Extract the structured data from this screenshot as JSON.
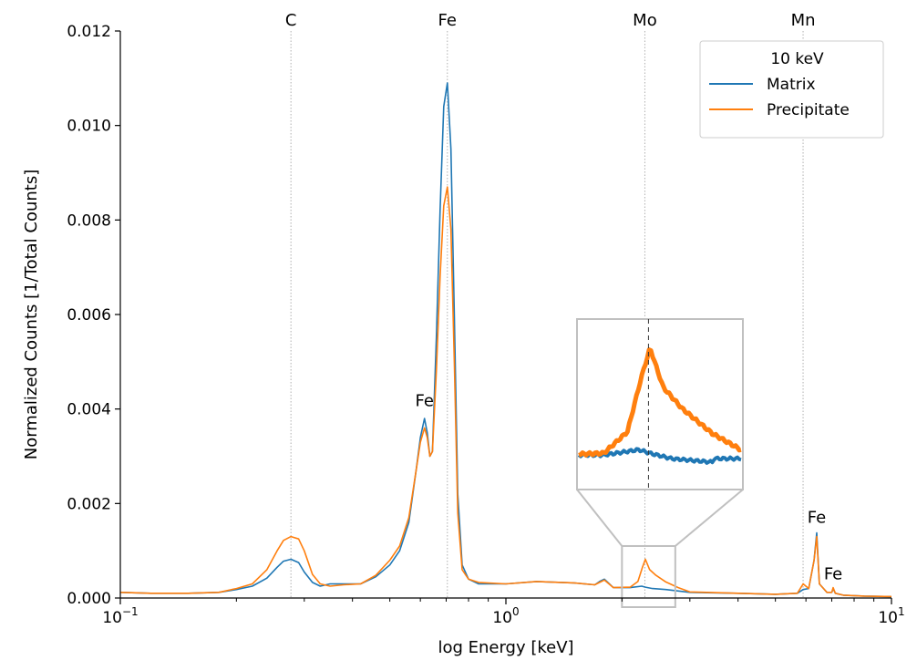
{
  "chart_data": {
    "type": "line",
    "title": "",
    "xlabel": "log Energy [keV]",
    "ylabel": "Normalized Counts [1/Total Counts]",
    "xscale": "log",
    "xlim": [
      0.1,
      10
    ],
    "ylim": [
      0,
      0.012
    ],
    "x_ticks": [
      {
        "value": 0.1,
        "base": "10",
        "exp": "−1"
      },
      {
        "value": 1,
        "base": "10",
        "exp": "0"
      },
      {
        "value": 10,
        "base": "10",
        "exp": "1"
      }
    ],
    "y_ticks": [
      "0.000",
      "0.002",
      "0.004",
      "0.006",
      "0.008",
      "0.010",
      "0.012"
    ],
    "legend": {
      "title": "10 keV",
      "position": "top-right"
    },
    "colors": {
      "matrix": "#1f77b4",
      "precipitate": "#ff7f0e",
      "element_lines": "#b0b0b0",
      "inset_frame": "#c0c0c0"
    },
    "element_lines": [
      {
        "label": "C",
        "energy": 0.277
      },
      {
        "label": "Fe",
        "energy": 0.705
      },
      {
        "label": "Mo",
        "energy": 2.293
      },
      {
        "label": "Mn",
        "energy": 5.899
      }
    ],
    "peak_annotations": [
      {
        "label": "Fe",
        "energy": 0.615,
        "value": 0.00395
      },
      {
        "label": "Fe",
        "energy": 6.4,
        "value": 0.00148
      },
      {
        "label": "Fe",
        "energy": 7.06,
        "value": 0.00028
      }
    ],
    "zoom_window": {
      "x_range": [
        2.0,
        2.75
      ],
      "y_range": [
        0,
        0.0011
      ]
    },
    "series": [
      {
        "name": "Matrix",
        "x": [
          0.1,
          0.12,
          0.15,
          0.18,
          0.2,
          0.22,
          0.24,
          0.255,
          0.265,
          0.277,
          0.29,
          0.3,
          0.315,
          0.33,
          0.35,
          0.38,
          0.42,
          0.46,
          0.5,
          0.53,
          0.56,
          0.585,
          0.6,
          0.615,
          0.625,
          0.635,
          0.645,
          0.66,
          0.675,
          0.69,
          0.705,
          0.72,
          0.735,
          0.75,
          0.77,
          0.8,
          0.85,
          1.0,
          1.2,
          1.5,
          1.7,
          1.75,
          1.8,
          1.9,
          2.1,
          2.25,
          2.3,
          2.4,
          2.6,
          3.0,
          4.0,
          5.0,
          5.7,
          5.9,
          6.1,
          6.3,
          6.4,
          6.5,
          6.8,
          7.0,
          7.06,
          7.15,
          7.5,
          8.5,
          10.0
        ],
        "values": [
          0.00012,
          0.0001,
          0.0001,
          0.00012,
          0.00018,
          0.00025,
          0.00042,
          0.00065,
          0.00078,
          0.00082,
          0.00075,
          0.00055,
          0.00033,
          0.00025,
          0.0003,
          0.0003,
          0.0003,
          0.00045,
          0.0007,
          0.001,
          0.0016,
          0.0027,
          0.0034,
          0.0038,
          0.0035,
          0.003,
          0.0031,
          0.0055,
          0.0082,
          0.0104,
          0.0109,
          0.0095,
          0.006,
          0.0022,
          0.0007,
          0.0004,
          0.0003,
          0.0003,
          0.00035,
          0.00032,
          0.00028,
          0.00035,
          0.0004,
          0.00022,
          0.00022,
          0.00025,
          0.00023,
          0.0002,
          0.00018,
          0.00012,
          0.0001,
          8e-05,
          0.0001,
          0.00018,
          0.0002,
          0.0008,
          0.00138,
          0.0003,
          0.00012,
          0.00012,
          0.0002,
          0.0001,
          6e-05,
          4e-05,
          3e-05
        ]
      },
      {
        "name": "Precipitate",
        "x": [
          0.1,
          0.12,
          0.15,
          0.18,
          0.2,
          0.22,
          0.24,
          0.255,
          0.265,
          0.277,
          0.29,
          0.3,
          0.315,
          0.33,
          0.35,
          0.38,
          0.42,
          0.46,
          0.5,
          0.53,
          0.56,
          0.585,
          0.6,
          0.615,
          0.625,
          0.635,
          0.645,
          0.66,
          0.675,
          0.69,
          0.705,
          0.72,
          0.735,
          0.75,
          0.77,
          0.8,
          0.85,
          1.0,
          1.2,
          1.5,
          1.7,
          1.75,
          1.8,
          1.9,
          2.1,
          2.2,
          2.26,
          2.3,
          2.36,
          2.45,
          2.6,
          2.8,
          3.0,
          4.0,
          5.0,
          5.7,
          5.9,
          6.1,
          6.3,
          6.4,
          6.5,
          6.8,
          7.0,
          7.06,
          7.15,
          7.5,
          8.5,
          10.0
        ],
        "values": [
          0.00012,
          0.0001,
          0.0001,
          0.00012,
          0.0002,
          0.0003,
          0.0006,
          0.001,
          0.00122,
          0.0013,
          0.00125,
          0.001,
          0.0005,
          0.0003,
          0.00025,
          0.00028,
          0.0003,
          0.00048,
          0.0008,
          0.0011,
          0.0017,
          0.0027,
          0.0033,
          0.0036,
          0.0034,
          0.003,
          0.0031,
          0.0048,
          0.0068,
          0.0083,
          0.0087,
          0.0078,
          0.005,
          0.0018,
          0.0006,
          0.0004,
          0.00033,
          0.0003,
          0.00035,
          0.00032,
          0.00028,
          0.00033,
          0.00038,
          0.00022,
          0.00023,
          0.00035,
          0.00065,
          0.00082,
          0.0006,
          0.00048,
          0.00034,
          0.00022,
          0.00013,
          0.0001,
          8e-05,
          0.0001,
          0.0003,
          0.0002,
          0.0008,
          0.0013,
          0.0003,
          0.00012,
          0.00012,
          0.00022,
          0.0001,
          6e-05,
          4e-05,
          3e-05
        ]
      }
    ]
  }
}
